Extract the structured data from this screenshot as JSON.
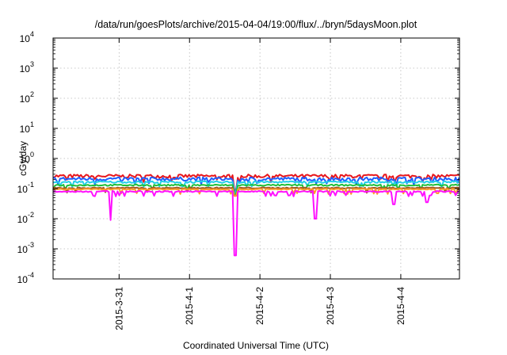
{
  "chart_data": {
    "type": "line",
    "title": "/data/run/goesPlots/archive/2015-04-04/19:00/flux/../bryn/5daysMoon.plot",
    "xlabel": "Coordinated Universal Time (UTC)",
    "ylabel": "cGy/day",
    "y_scale": "log",
    "ylim": [
      0.0001,
      10000
    ],
    "x_range": [
      "2015-03-30T01:30",
      "2015-04-04T20:00"
    ],
    "grid": true,
    "y_ticks": [
      {
        "value": 0.0001,
        "base": "10",
        "exp": "-4"
      },
      {
        "value": 0.001,
        "base": "10",
        "exp": "-3"
      },
      {
        "value": 0.01,
        "base": "10",
        "exp": "-2"
      },
      {
        "value": 0.1,
        "base": "10",
        "exp": "-1"
      },
      {
        "value": 1,
        "base": "10",
        "exp": "0"
      },
      {
        "value": 10,
        "base": "10",
        "exp": "1"
      },
      {
        "value": 100,
        "base": "10",
        "exp": "2"
      },
      {
        "value": 1000,
        "base": "10",
        "exp": "3"
      },
      {
        "value": 10000,
        "base": "10",
        "exp": "4"
      }
    ],
    "x_ticks": [
      {
        "value": "2015-03-31",
        "label": "2015-3-31"
      },
      {
        "value": "2015-04-01",
        "label": "2015-4-1"
      },
      {
        "value": "2015-04-02",
        "label": "2015-4-2"
      },
      {
        "value": "2015-04-03",
        "label": "2015-4-3"
      },
      {
        "value": "2015-04-04",
        "label": "2015-4-4"
      }
    ],
    "series": [
      {
        "color": "#e8161c",
        "base": 0.26,
        "amp": 0.03
      },
      {
        "color": "#1f5fff",
        "base": 0.21,
        "amp": 0.03
      },
      {
        "color": "#22cfe8",
        "base": 0.165,
        "amp": 0.015
      },
      {
        "color": "#1fc03a",
        "base": 0.13,
        "amp": 0.012
      },
      {
        "color": "#a05a20",
        "base": 0.105,
        "amp": 0.01
      },
      {
        "color": "#ff9a2a",
        "base": 0.095,
        "amp": 0.008
      },
      {
        "color": "#ff10ff",
        "base": 0.08,
        "amp": 0.01
      }
    ],
    "dips": [
      {
        "x": "2015-03-30T21:00",
        "value": 0.009
      },
      {
        "x": "2015-04-01T15:30",
        "value": 0.0006
      },
      {
        "x": "2015-04-02T19:00",
        "value": 0.01
      },
      {
        "x": "2015-04-03T21:45",
        "value": 0.03
      },
      {
        "x": "2015-04-04T09:00",
        "value": 0.035
      }
    ]
  }
}
